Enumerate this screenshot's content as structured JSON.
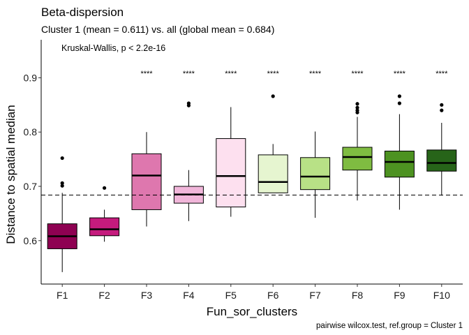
{
  "chart_data": {
    "type": "box",
    "title": "Beta-dispersion",
    "subtitle": "Cluster 1 (mean = 0.611) vs. all (global mean = 0.684)",
    "xlabel": "Fun_sor_clusters",
    "ylabel": "Distance to spatial median",
    "caption": "pairwise wilcox.test, ref.group = Cluster 1",
    "annotation": "Kruskal-Wallis, p < 2.2e-16",
    "reference_line": {
      "y": 0.684,
      "style": "dashed"
    },
    "ylim": [
      0.52,
      0.97
    ],
    "yticks": [
      0.6,
      0.7,
      0.8,
      0.9
    ],
    "ytick_labels": [
      "0.6",
      "0.7",
      "0.8",
      "0.9"
    ],
    "grid": false,
    "legend": "none",
    "categories": [
      "F1",
      "F2",
      "F3",
      "F4",
      "F5",
      "F6",
      "F7",
      "F8",
      "F9",
      "F10"
    ],
    "boxes": [
      {
        "category": "F1",
        "min": 0.542,
        "q1": 0.585,
        "median": 0.608,
        "q3": 0.631,
        "max": 0.688,
        "outliers": [
          0.752,
          0.706,
          0.701
        ],
        "significance": "",
        "color": "#8e0152"
      },
      {
        "category": "F2",
        "min": 0.598,
        "q1": 0.609,
        "median": 0.621,
        "q3": 0.642,
        "max": 0.657,
        "outliers": [
          0.697
        ],
        "significance": "",
        "color": "#c51b7d"
      },
      {
        "category": "F3",
        "min": 0.626,
        "q1": 0.657,
        "median": 0.72,
        "q3": 0.76,
        "max": 0.8,
        "outliers": [],
        "significance": "****",
        "color": "#de77ae"
      },
      {
        "category": "F4",
        "min": 0.636,
        "q1": 0.669,
        "median": 0.685,
        "q3": 0.7,
        "max": 0.73,
        "outliers": [
          0.853,
          0.849
        ],
        "significance": "****",
        "color": "#f1b6da"
      },
      {
        "category": "F5",
        "min": 0.644,
        "q1": 0.662,
        "median": 0.719,
        "q3": 0.788,
        "max": 0.846,
        "outliers": [],
        "significance": "****",
        "color": "#fde0ef"
      },
      {
        "category": "F6",
        "min": 0.688,
        "q1": 0.688,
        "median": 0.708,
        "q3": 0.758,
        "max": 0.778,
        "outliers": [
          0.866
        ],
        "significance": "****",
        "color": "#e6f5d0"
      },
      {
        "category": "F7",
        "min": 0.642,
        "q1": 0.694,
        "median": 0.718,
        "q3": 0.753,
        "max": 0.801,
        "outliers": [],
        "significance": "****",
        "color": "#b8e186"
      },
      {
        "category": "F8",
        "min": 0.674,
        "q1": 0.73,
        "median": 0.754,
        "q3": 0.772,
        "max": 0.828,
        "outliers": [
          0.852,
          0.845,
          0.84,
          0.836
        ],
        "significance": "****",
        "color": "#7fbc41"
      },
      {
        "category": "F9",
        "min": 0.657,
        "q1": 0.717,
        "median": 0.745,
        "q3": 0.765,
        "max": 0.833,
        "outliers": [
          0.866,
          0.853
        ],
        "significance": "****",
        "color": "#4d9221"
      },
      {
        "category": "F10",
        "min": 0.683,
        "q1": 0.728,
        "median": 0.743,
        "q3": 0.767,
        "max": 0.817,
        "outliers": [
          0.85,
          0.84
        ],
        "significance": "****",
        "color": "#276419"
      }
    ]
  }
}
